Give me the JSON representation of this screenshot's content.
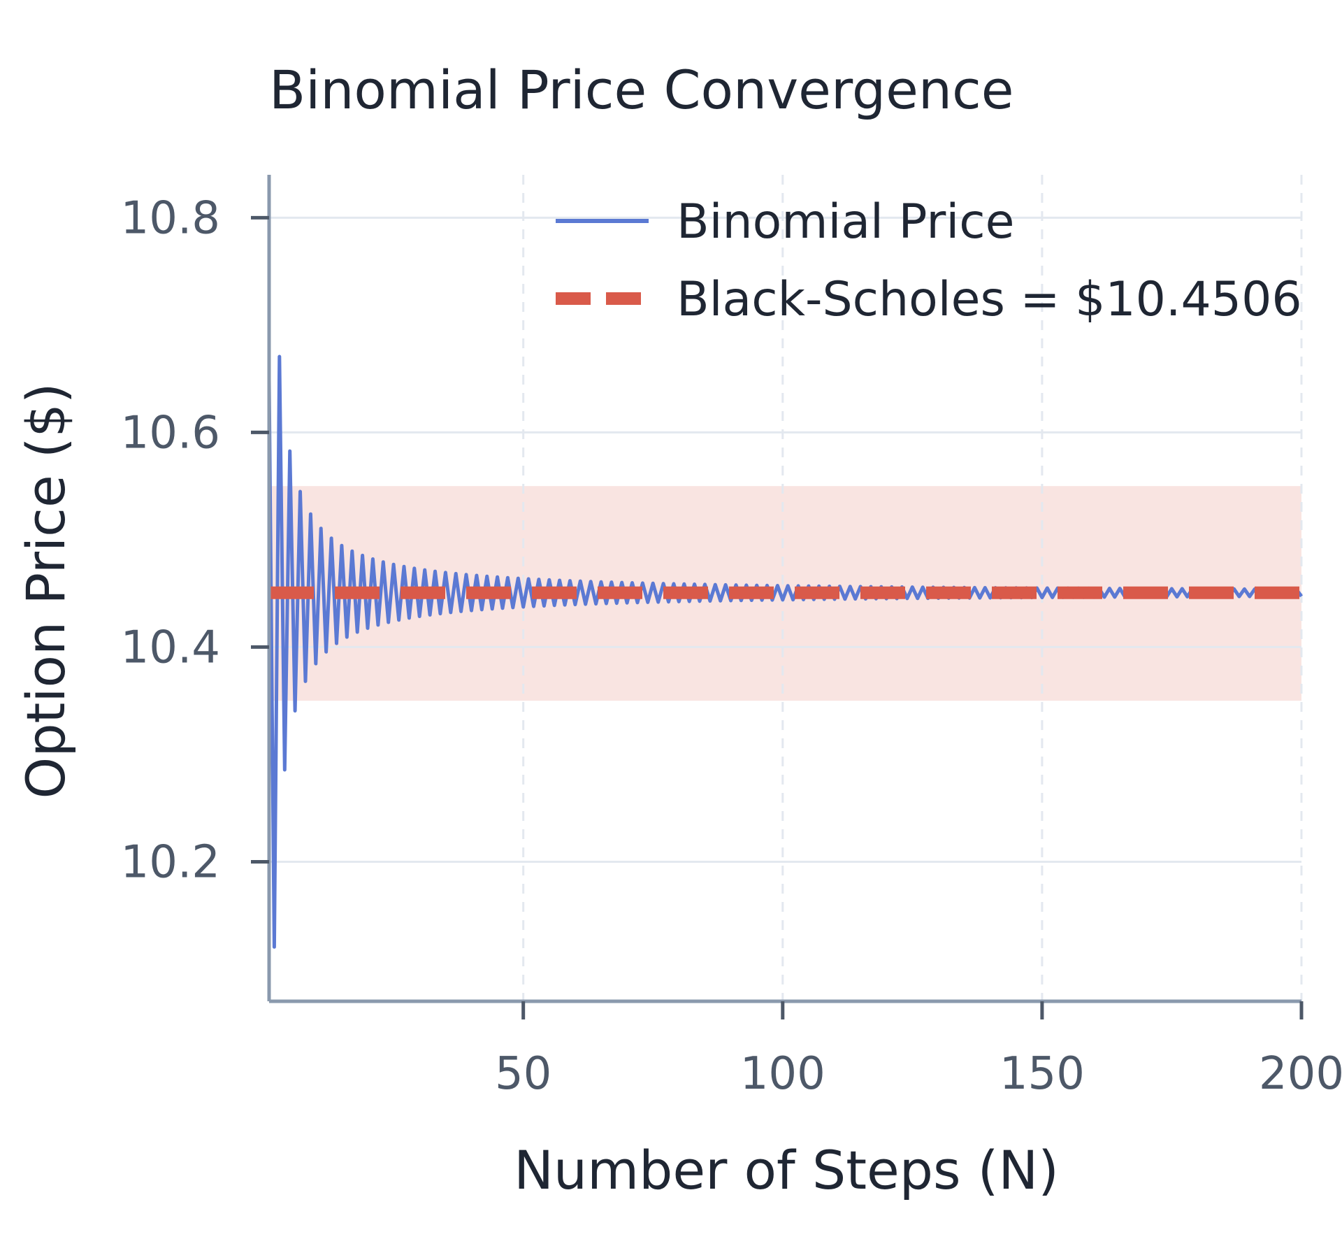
{
  "chart_data": {
    "type": "line",
    "title": "Binomial Price Convergence",
    "xlabel": "Number of Steps (N)",
    "ylabel": "Option Price ($)",
    "xlim": [
      1,
      200
    ],
    "ylim": [
      10.07,
      10.84
    ],
    "x_ticks": [
      50,
      100,
      150,
      200
    ],
    "x_tick_labels": [
      "50",
      "100",
      "150",
      "200"
    ],
    "y_ticks": [
      10.2,
      10.4,
      10.6,
      10.8
    ],
    "y_tick_labels": [
      "10.2",
      "10.4",
      "10.6",
      "10.8"
    ],
    "grid": true,
    "legend_position": "top-right",
    "black_scholes_value": 10.4506,
    "band": [
      10.35,
      10.55
    ],
    "amplitude_at_n2": 0.33,
    "series": [
      {
        "name": "Binomial Price",
        "type": "line",
        "color": "#5b79d3",
        "x_start": 1,
        "x_end": 200,
        "convergence": "oscillating ~ 1/N"
      },
      {
        "name": "Black-Scholes = $10.4506",
        "type": "hline",
        "color": "#d95a4a",
        "value": 10.4506
      }
    ],
    "colors": {
      "band": "#f6d5d1",
      "grid": "#e3e8ef",
      "axis": "#8a99ad"
    }
  }
}
